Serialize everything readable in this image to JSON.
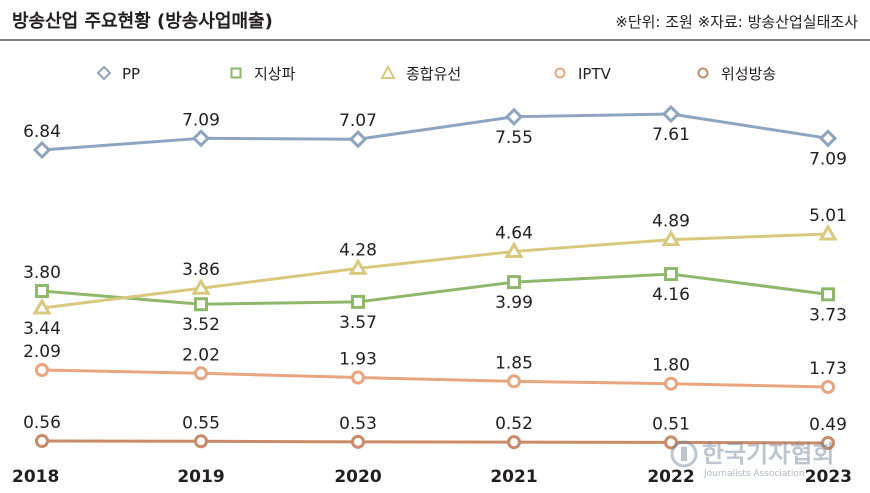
{
  "chart_data": {
    "type": "line",
    "title": "방송산업 주요현황 (방송사업매출)",
    "note": "※단위: 조원  ※자료: 방송산업실태조사",
    "watermark": {
      "name": "한국기자협회",
      "sub": "Journalists Association"
    },
    "x": [
      "2018",
      "2019",
      "2020",
      "2021",
      "2022",
      "2023"
    ],
    "series": [
      {
        "name": "PP",
        "values": [
          6.84,
          7.09,
          7.07,
          7.55,
          7.61,
          7.09
        ],
        "color": "#8ea4c1",
        "marker": "diamond",
        "labels": [
          "above",
          "above",
          "above",
          "below",
          "below",
          "below"
        ]
      },
      {
        "name": "지상파",
        "values": [
          3.8,
          3.52,
          3.57,
          3.99,
          4.16,
          3.73
        ],
        "color": "#8fb86c",
        "marker": "square",
        "labels": [
          "above",
          "below",
          "below",
          "below",
          "below",
          "below"
        ]
      },
      {
        "name": "종합유선",
        "values": [
          3.44,
          3.86,
          4.28,
          4.64,
          4.89,
          5.01
        ],
        "color": "#d9c97e",
        "marker": "triangle",
        "labels": [
          "below",
          "above",
          "above",
          "above",
          "above",
          "above"
        ]
      },
      {
        "name": "IPTV",
        "values": [
          2.09,
          2.02,
          1.93,
          1.85,
          1.8,
          1.73
        ],
        "color": "#e8a57f",
        "marker": "circle",
        "labels": [
          "above",
          "above",
          "above",
          "above",
          "above",
          "above"
        ]
      },
      {
        "name": "위성방송",
        "values": [
          0.56,
          0.55,
          0.53,
          0.52,
          0.51,
          0.49
        ],
        "color": "#c98b68",
        "marker": "circle",
        "labels": [
          "above",
          "above",
          "above",
          "above",
          "above",
          "above"
        ]
      }
    ],
    "grid": false,
    "legend": "top"
  }
}
